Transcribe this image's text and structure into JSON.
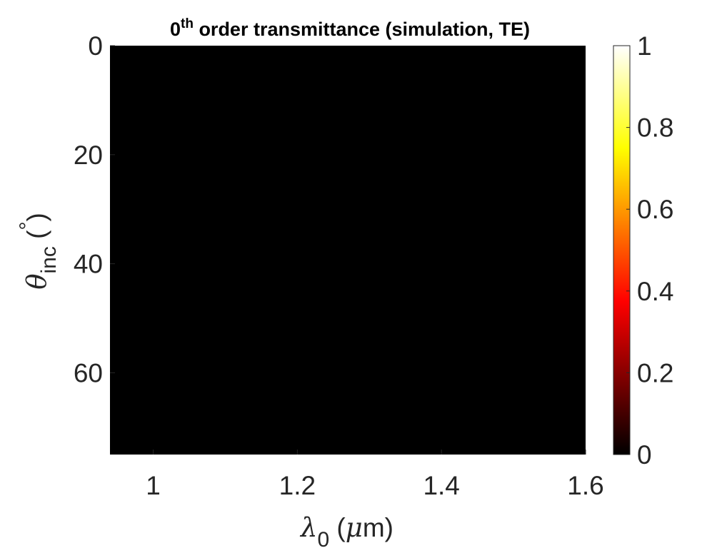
{
  "chart_data": {
    "type": "heatmap",
    "title": {
      "prefix": "0",
      "superscript": "th",
      "text": " order transmittance (simulation, TE)"
    },
    "xlabel": {
      "symbol": "λ",
      "subscript": "0",
      "unit_open": " (",
      "unit_symbol": "μ",
      "unit_rest": "m)"
    },
    "ylabel": {
      "symbol": "θ",
      "subscript": "inc",
      "unit_open": " (",
      "unit_symbol": "°",
      "unit_close": ")"
    },
    "xlim": [
      0.94,
      1.6
    ],
    "ylim": [
      0,
      75
    ],
    "y_reversed": true,
    "xticks": [
      1,
      1.2,
      1.4,
      1.6
    ],
    "xtick_labels": [
      "1",
      "1.2",
      "1.4",
      "1.6"
    ],
    "yticks": [
      0,
      20,
      40,
      60
    ],
    "ytick_labels": [
      "0",
      "20",
      "40",
      "60"
    ],
    "grid": false,
    "values": "all cells ≈ 0 (uniform black)",
    "uniform_value": 0,
    "colormap": "hot",
    "colormap_stops": [
      "#000000",
      "#ff0000",
      "#ffff00",
      "#ffffff"
    ],
    "colorbar": {
      "range": [
        0,
        1
      ],
      "ticks": [
        0,
        0.2,
        0.4,
        0.6,
        0.8,
        1
      ],
      "tick_labels": [
        "0",
        "0.2",
        "0.4",
        "0.6",
        "0.8",
        "1"
      ]
    }
  }
}
